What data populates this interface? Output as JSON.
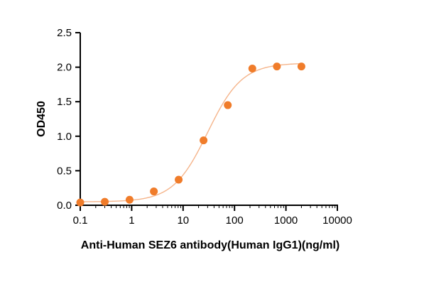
{
  "chart_data": {
    "type": "scatter",
    "xlabel": "Anti-Human SEZ6 antibody(Human IgG1)(ng/ml)",
    "ylabel": "OD450",
    "x_scale": "log",
    "xlim": [
      0.1,
      10000
    ],
    "ylim": [
      0,
      2.5
    ],
    "x_ticks": [
      0.1,
      1,
      10,
      100,
      1000,
      10000
    ],
    "x_tick_labels": [
      "0.1",
      "1",
      "10",
      "100",
      "1000",
      "10000"
    ],
    "y_ticks": [
      0,
      0.5,
      1,
      1.5,
      2,
      2.5
    ],
    "y_tick_labels": [
      "0.0",
      "0.5",
      "1.0",
      "1.5",
      "2.0",
      "2.5"
    ],
    "grid": false,
    "points": {
      "x": [
        0.1,
        0.3,
        0.91,
        2.7,
        8.2,
        25,
        74,
        222,
        667,
        2000
      ],
      "y": [
        0.04,
        0.05,
        0.08,
        0.2,
        0.37,
        0.94,
        1.45,
        1.98,
        2.01,
        2.01
      ]
    },
    "fit_curve": {
      "model": "4PL",
      "bottom": 0.05,
      "top": 2.06,
      "ec50": 30,
      "hill": 1.3
    },
    "colors": {
      "points": "#f07c2a",
      "curve": "#f5b48a",
      "axis": "#000000"
    }
  }
}
